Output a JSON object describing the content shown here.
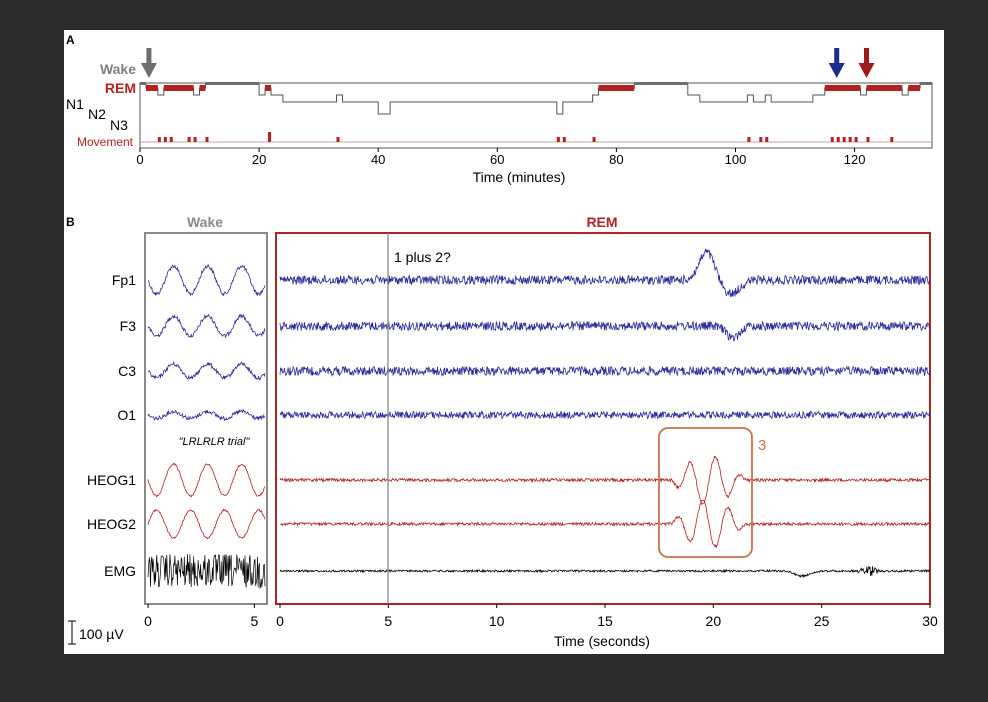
{
  "panel_a": {
    "label": "A",
    "stage_labels": {
      "wake": "Wake",
      "rem": "REM",
      "n1": "N1",
      "n2": "N2",
      "n3": "N3",
      "movement": "Movement"
    },
    "xlabel": "Time (minutes)",
    "xticks": [
      "0",
      "20",
      "40",
      "60",
      "80",
      "100",
      "120"
    ]
  },
  "panel_b": {
    "label": "B",
    "wake_title": "Wake",
    "rem_title": "REM",
    "channels": [
      "Fp1",
      "F3",
      "C3",
      "O1",
      "HEOG1",
      "HEOG2",
      "EMG"
    ],
    "wake_annotation": "\"LRLRLR trial\"",
    "rem_annotation_1": "1 plus 2?",
    "rem_annotation_3": "3",
    "wake_xticks": [
      "0",
      "5"
    ],
    "rem_xticks": [
      "0",
      "5",
      "10",
      "15",
      "20",
      "25",
      "30"
    ],
    "xlabel": "Time (seconds)",
    "scale_bar": "100 µV"
  },
  "colors": {
    "wake": "#808080",
    "rem": "#b22222",
    "eeg": "#2a2a9a",
    "eog": "#b22222",
    "emg": "#000000",
    "blue_arrow": "#1f2a8f",
    "red_arrow": "#a01a1a",
    "box": "#c8714a"
  },
  "chart_data": [
    {
      "type": "line",
      "title": "",
      "xlabel": "Time (minutes)",
      "ylabel": "",
      "xlim": [
        0,
        133
      ],
      "y_categories": [
        "Wake",
        "REM",
        "N1",
        "N2",
        "N3"
      ],
      "series": [
        {
          "segments": [
            [
              0,
              1,
              "Wake"
            ],
            [
              1,
              3,
              "REM"
            ],
            [
              3,
              4,
              "N1"
            ],
            [
              4,
              9,
              "REM"
            ],
            [
              9,
              10,
              "N1"
            ],
            [
              10,
              11,
              "REM"
            ],
            [
              11,
              20,
              "Wake"
            ],
            [
              20,
              21,
              "N1"
            ],
            [
              21,
              22,
              "REM"
            ],
            [
              22,
              24,
              "N1"
            ],
            [
              24,
              33,
              "N2"
            ],
            [
              33,
              34,
              "N1"
            ],
            [
              34,
              40,
              "N2"
            ],
            [
              40,
              42,
              "N3"
            ],
            [
              42,
              43,
              "N2"
            ],
            [
              43,
              70,
              "N2"
            ],
            [
              70,
              71,
              "N3"
            ],
            [
              71,
              72,
              "N2"
            ],
            [
              72,
              76,
              "N2"
            ],
            [
              76,
              77,
              "N1"
            ],
            [
              77,
              83,
              "REM"
            ],
            [
              83,
              92,
              "Wake"
            ],
            [
              92,
              94,
              "N1"
            ],
            [
              94,
              102,
              "N2"
            ],
            [
              102,
              103,
              "N1"
            ],
            [
              103,
              105,
              "N2"
            ],
            [
              105,
              106,
              "N1"
            ],
            [
              106,
              113,
              "N2"
            ],
            [
              113,
              115,
              "N1"
            ],
            [
              115,
              121,
              "REM"
            ],
            [
              121,
              122,
              "N1"
            ],
            [
              122,
              128,
              "REM"
            ],
            [
              128,
              129,
              "N1"
            ],
            [
              129,
              131,
              "REM"
            ],
            [
              131,
              133,
              "Wake"
            ]
          ]
        }
      ],
      "movement_minutes": [
        3,
        4,
        5,
        8,
        9,
        11,
        21.5,
        33,
        70,
        71,
        76,
        102,
        104,
        105,
        116,
        117,
        118,
        119,
        120,
        122,
        126
      ],
      "arrow_minutes": {
        "gray": 1.5,
        "blue": 117,
        "red": 122
      }
    },
    {
      "type": "line",
      "title": "",
      "xlabel": "Time (seconds)",
      "ylabel": "",
      "panels": [
        {
          "name": "Wake",
          "xlim": [
            0,
            5.5
          ]
        },
        {
          "name": "REM",
          "xlim": [
            0,
            30
          ],
          "markers": [
            {
              "x": 5,
              "label": "1 plus 2?"
            }
          ],
          "box": {
            "x": [
              17.5,
              22
            ],
            "channels": [
              "HEOG1",
              "HEOG2"
            ],
            "label": "3"
          }
        }
      ],
      "series": [
        {
          "name": "Fp1"
        },
        {
          "name": "F3"
        },
        {
          "name": "C3"
        },
        {
          "name": "O1"
        },
        {
          "name": "HEOG1"
        },
        {
          "name": "HEOG2"
        },
        {
          "name": "EMG"
        }
      ],
      "scale_uV": 100
    }
  ]
}
